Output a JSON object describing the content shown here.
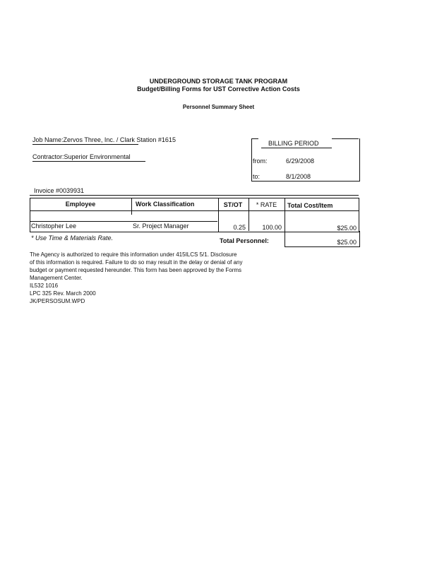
{
  "header": {
    "line1": "UNDERGROUND STORAGE TANK PROGRAM",
    "line2": "Budget/Billing Forms for UST Corrective Action Costs",
    "subtitle": "Personnel Summary Sheet"
  },
  "job": {
    "label": "Job Name:",
    "value": "Zervos Three, Inc. / Clark Station #1615"
  },
  "contractor": {
    "label": "Contractor:",
    "value": "Superior Environmental"
  },
  "billing": {
    "title": "BILLING PERIOD",
    "from_label": "from:",
    "from": "6/29/2008",
    "to_label": "to:",
    "to": "8/1/2008"
  },
  "invoice": "Invoice #0039931",
  "table": {
    "headers": [
      "Employee",
      "Work Classification",
      "ST/OT",
      "* RATE",
      "Total Cost/Item"
    ],
    "rows": [
      {
        "employee": "Christopher Lee",
        "classification": "Sr. Project Manager",
        "stot": "0.25",
        "rate": "100.00",
        "total": "$25.00"
      }
    ]
  },
  "note": "* Use Time & Materials Rate.",
  "total_label": "Total Personnel:",
  "total_value": "$25.00",
  "footer": {
    "text": "The Agency is authorized to require this information under 415ILCS 5/1. Disclosure\nof this information is required. Failure to do so may result in the delay or denial of any\nbudget or payment requested hereunder. This form has been approved by the Forms\nManagement Center.",
    "code1": "IL532 1016",
    "code2": "LPC 325 Rev. March 2000",
    "code3": "JK/PERSOSUM.WPD"
  }
}
